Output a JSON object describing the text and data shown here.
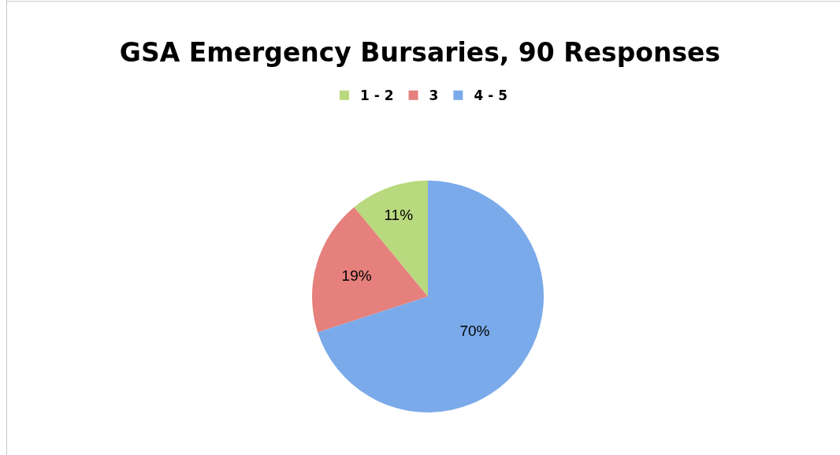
{
  "chart_data": {
    "type": "pie",
    "title": "GSA Emergency Bursaries, 90 Responses",
    "categories": [
      "1 - 2",
      "3",
      "4 - 5"
    ],
    "values": [
      11,
      19,
      70
    ],
    "colors": [
      "#b9d97e",
      "#e5807c",
      "#7aaaea"
    ],
    "value_labels": [
      "11%",
      "19%",
      "70%"
    ],
    "legend": "top"
  }
}
